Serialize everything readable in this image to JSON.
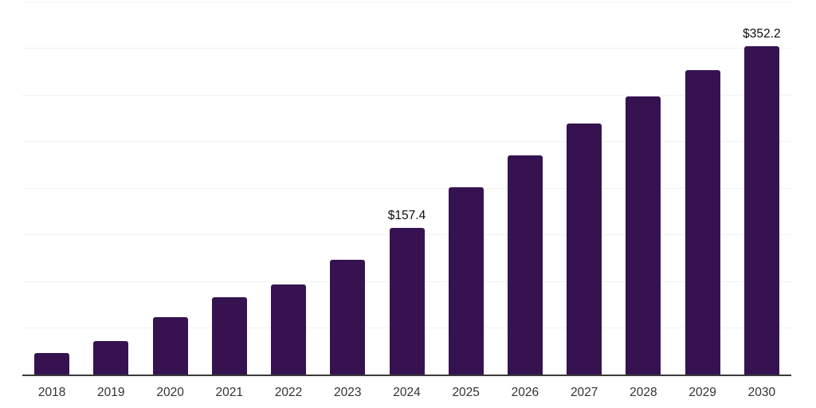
{
  "chart_data": {
    "type": "bar",
    "title": "",
    "xlabel": "",
    "ylabel": "",
    "categories": [
      "2018",
      "2019",
      "2020",
      "2021",
      "2022",
      "2023",
      "2024",
      "2025",
      "2026",
      "2027",
      "2028",
      "2029",
      "2030"
    ],
    "values": [
      23.0,
      35.8,
      61.4,
      82.7,
      96.4,
      122.8,
      157.4,
      200.4,
      234.5,
      268.6,
      297.6,
      326.6,
      352.2
    ],
    "annotations": [
      {
        "category": "2024",
        "value_label": "$157.4"
      },
      {
        "category": "2030",
        "value_label": "$352.2"
      }
    ],
    "ylim": [
      0,
      400
    ],
    "gridline_step": 50,
    "grid": "horizontal",
    "legend": "none",
    "colors": {
      "bar": "#361350",
      "axis_line": "#3a3a3a",
      "gridline": "#f1f1f1",
      "tick_label": "#333333",
      "value_label": "#0d0d0d",
      "background": "#ffffff"
    }
  }
}
